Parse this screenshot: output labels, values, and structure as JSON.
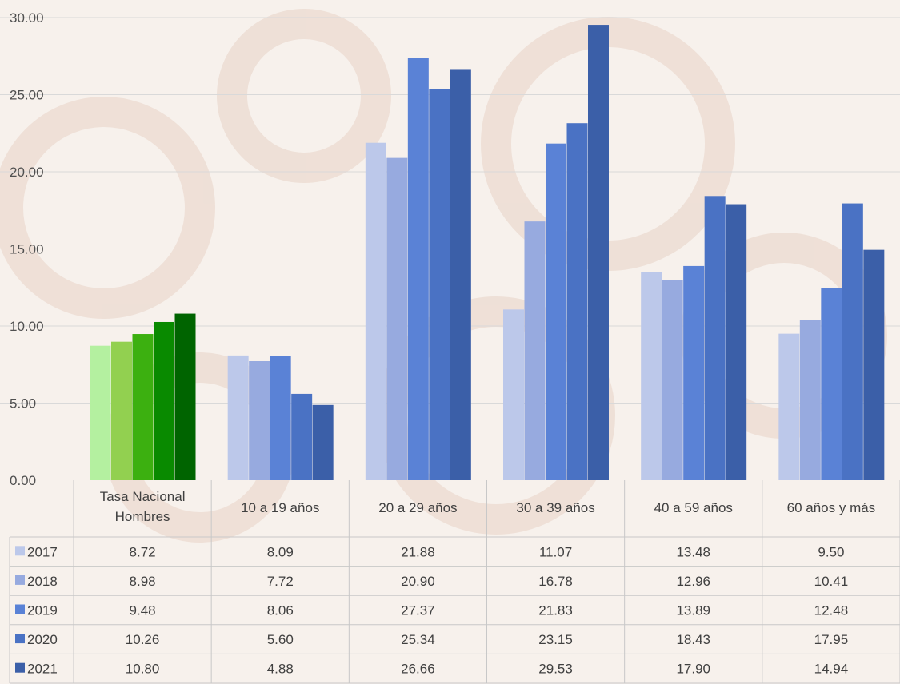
{
  "chart_data": {
    "type": "bar",
    "title": "",
    "xlabel": "",
    "ylabel": "",
    "ylim": [
      0,
      30
    ],
    "y_ticks": [
      "0.00",
      "5.00",
      "10.00",
      "15.00",
      "20.00",
      "25.00",
      "30.00"
    ],
    "grid": true,
    "legend": "data-table-left",
    "categories": [
      "Tasa Nacional Hombres",
      "10 a 19 años",
      "20 a 29 años",
      "30 a 39 años",
      "40 a 59 años",
      "60 años y más"
    ],
    "series": [
      {
        "name": "2017",
        "values": [
          8.72,
          8.09,
          21.88,
          11.07,
          13.48,
          9.5
        ],
        "display": [
          "8.72",
          "8.09",
          "21.88",
          "11.07",
          "13.48",
          "9.50"
        ]
      },
      {
        "name": "2018",
        "values": [
          8.98,
          7.72,
          20.9,
          16.78,
          12.96,
          10.41
        ],
        "display": [
          "8.98",
          "7.72",
          "20.90",
          "16.78",
          "12.96",
          "10.41"
        ]
      },
      {
        "name": "2019",
        "values": [
          9.48,
          8.06,
          27.37,
          21.83,
          13.89,
          12.48
        ],
        "display": [
          "9.48",
          "8.06",
          "27.37",
          "21.83",
          "13.89",
          "12.48"
        ]
      },
      {
        "name": "2020",
        "values": [
          10.26,
          5.6,
          25.34,
          23.15,
          18.43,
          17.95
        ],
        "display": [
          "10.26",
          "5.60",
          "25.34",
          "23.15",
          "18.43",
          "17.95"
        ]
      },
      {
        "name": "2021",
        "values": [
          10.8,
          4.88,
          26.66,
          29.53,
          17.9,
          14.94
        ],
        "display": [
          "10.80",
          "4.88",
          "26.66",
          "29.53",
          "17.90",
          "14.94"
        ]
      }
    ],
    "colors": {
      "series": [
        "#bcc8ea",
        "#97aadf",
        "#5a82d6",
        "#4a72c4",
        "#3b5fa8"
      ],
      "national_group": [
        "#b4f0a0",
        "#92d050",
        "#3cb010",
        "#098a00",
        "#006400"
      ],
      "grid": "#d9d9d9",
      "table_border": "#c8c8c8"
    }
  }
}
